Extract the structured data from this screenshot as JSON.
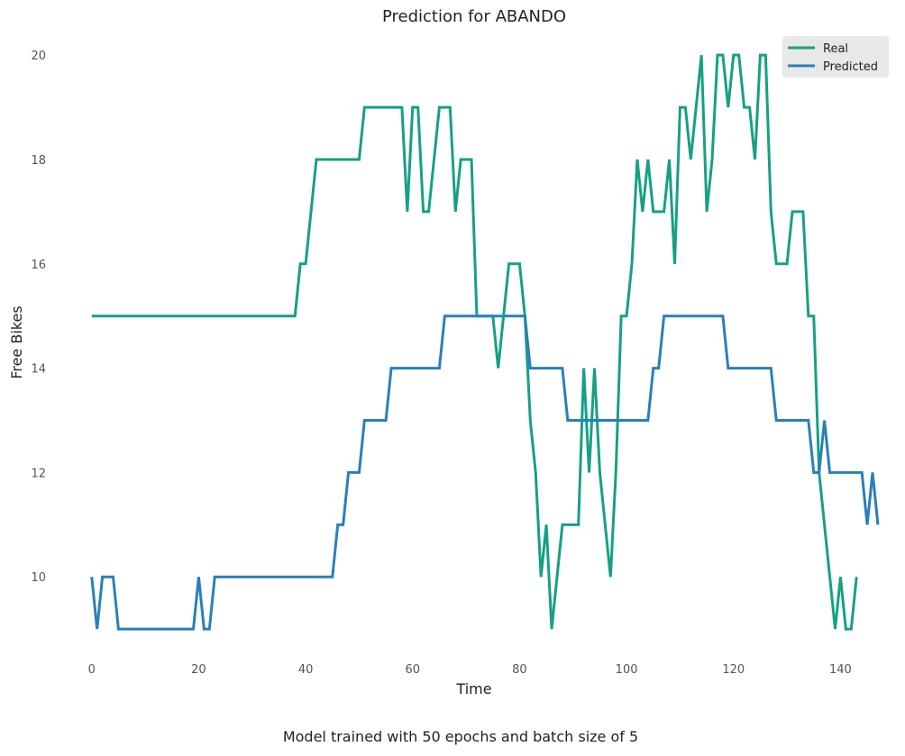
{
  "chart_data": {
    "type": "line",
    "title": "Prediction for ABANDO",
    "xlabel": "Time",
    "ylabel": "Free Bikes",
    "xlim": [
      -3.5,
      146.5
    ],
    "ylim": [
      8.45,
      20.4
    ],
    "xticks": [
      0,
      20,
      40,
      60,
      80,
      100,
      120,
      140
    ],
    "yticks": [
      10,
      12,
      14,
      16,
      18,
      20
    ],
    "grid": false,
    "legend_position": "top-right",
    "series": [
      {
        "name": "Real",
        "color": "#16a085",
        "values": [
          15,
          15,
          15,
          15,
          15,
          15,
          15,
          15,
          15,
          15,
          15,
          15,
          15,
          15,
          15,
          15,
          15,
          15,
          15,
          15,
          15,
          15,
          15,
          15,
          15,
          15,
          15,
          15,
          15,
          15,
          15,
          15,
          15,
          15,
          15,
          15,
          15,
          15,
          15,
          16,
          16,
          17,
          18,
          18,
          18,
          18,
          18,
          18,
          18,
          18,
          18,
          19,
          19,
          19,
          19,
          19,
          19,
          19,
          19,
          17,
          19,
          19,
          17,
          17,
          18,
          19,
          19,
          19,
          17,
          18,
          18,
          18,
          15,
          15,
          15,
          15,
          14,
          15,
          16,
          16,
          16,
          15,
          13,
          12,
          10,
          11,
          9,
          10,
          11,
          11,
          11,
          11,
          14,
          12,
          14,
          12,
          11,
          10,
          12,
          15,
          15,
          16,
          18,
          17,
          18,
          17,
          17,
          17,
          18,
          16,
          19,
          19,
          18,
          19,
          20,
          17,
          18,
          20,
          20,
          19,
          20,
          20,
          19,
          19,
          18,
          20,
          20,
          17,
          16,
          16,
          16,
          17,
          17,
          17,
          15,
          15,
          12,
          11,
          10,
          9,
          10,
          9,
          9,
          10
        ]
      },
      {
        "name": "Predicted",
        "color": "#2980b9",
        "values": [
          10,
          9,
          10,
          10,
          10,
          9,
          9,
          9,
          9,
          9,
          9,
          9,
          9,
          9,
          9,
          9,
          9,
          9,
          9,
          9,
          10,
          9,
          9,
          10,
          10,
          10,
          10,
          10,
          10,
          10,
          10,
          10,
          10,
          10,
          10,
          10,
          10,
          10,
          10,
          10,
          10,
          10,
          10,
          10,
          10,
          10,
          11,
          11,
          12,
          12,
          12,
          13,
          13,
          13,
          13,
          13,
          14,
          14,
          14,
          14,
          14,
          14,
          14,
          14,
          14,
          14,
          15,
          15,
          15,
          15,
          15,
          15,
          15,
          15,
          15,
          15,
          15,
          15,
          15,
          15,
          15,
          15,
          14,
          14,
          14,
          14,
          14,
          14,
          14,
          13,
          13,
          13,
          13,
          13,
          13,
          13,
          13,
          13,
          13,
          13,
          13,
          13,
          13,
          13,
          13,
          14,
          14,
          15,
          15,
          15,
          15,
          15,
          15,
          15,
          15,
          15,
          15,
          15,
          15,
          14,
          14,
          14,
          14,
          14,
          14,
          14,
          14,
          14,
          13,
          13,
          13,
          13,
          13,
          13,
          13,
          12,
          12,
          13,
          12,
          12,
          12,
          12,
          12,
          12,
          12,
          11,
          12,
          11
        ]
      }
    ]
  },
  "caption": "Model trained with 50 epochs and batch size of 5"
}
